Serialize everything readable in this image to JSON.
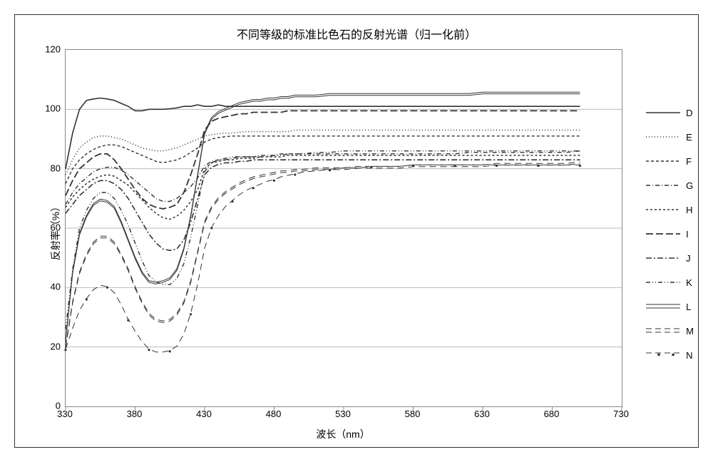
{
  "title": "不同等级的标准比色石的反射光谱（归一化前）",
  "x_label": "波长（nm）",
  "y_label": "反射率（%）",
  "type": "line",
  "background_color": "#ffffff",
  "grid_color": "#bbbbbb",
  "border_color": "#333333",
  "plot_border_color": "#888888",
  "title_fontsize": 16,
  "label_fontsize": 14,
  "tick_fontsize": 13,
  "xlim": [
    330,
    730
  ],
  "ylim": [
    0,
    120
  ],
  "x_ticks": [
    330,
    380,
    430,
    480,
    530,
    580,
    630,
    680,
    730
  ],
  "y_ticks": [
    0,
    20,
    40,
    60,
    80,
    100,
    120
  ],
  "x_value_max_plotted": 700,
  "legend_position": "right",
  "line_width": 1.4,
  "x_points": [
    330,
    335,
    340,
    345,
    350,
    355,
    360,
    365,
    370,
    375,
    380,
    385,
    390,
    395,
    400,
    405,
    410,
    415,
    420,
    425,
    430,
    435,
    440,
    445,
    450,
    455,
    460,
    465,
    470,
    475,
    480,
    485,
    490,
    495,
    500,
    510,
    520,
    530,
    540,
    550,
    560,
    570,
    580,
    590,
    600,
    610,
    620,
    630,
    640,
    650,
    660,
    670,
    680,
    690,
    700
  ],
  "series": [
    {
      "name": "D",
      "label": "D",
      "color": "#333333",
      "dash": "solid",
      "width": 1.6,
      "y": [
        80,
        92,
        100,
        103,
        103.5,
        103.8,
        103.5,
        103,
        102,
        101,
        99.5,
        99.5,
        100,
        100,
        100,
        100.2,
        100.5,
        101,
        101,
        101.5,
        101,
        101,
        101.5,
        101,
        101,
        101,
        101,
        101,
        101,
        101,
        101,
        101,
        101,
        101,
        101,
        101,
        101,
        101,
        101,
        101,
        101,
        101,
        101,
        101,
        101,
        101,
        101,
        101,
        101,
        101,
        101,
        101,
        101,
        101,
        101
      ]
    },
    {
      "name": "E",
      "label": "E",
      "color": "#333333",
      "dash": "1,3",
      "width": 1.6,
      "y": [
        78,
        83,
        87,
        89,
        90.5,
        91,
        91,
        90.5,
        90,
        89,
        88,
        87,
        86.5,
        86,
        86,
        86.5,
        87,
        88,
        89,
        90,
        91,
        91.5,
        91.8,
        92,
        92,
        92.3,
        92.5,
        92.5,
        92.5,
        92.5,
        92.5,
        92.5,
        92.5,
        93,
        93,
        93,
        93,
        93,
        93,
        93,
        93,
        93,
        93,
        93,
        93,
        93,
        93,
        93,
        93,
        93,
        93,
        93,
        93,
        93,
        93
      ]
    },
    {
      "name": "F",
      "label": "F",
      "color": "#333333",
      "dash": "4,3",
      "width": 1.4,
      "y": [
        75,
        80,
        83,
        85,
        86.5,
        87.5,
        88,
        88,
        87.5,
        86.5,
        85.5,
        84.5,
        83.5,
        82.5,
        82,
        82.5,
        83,
        84,
        85.5,
        87,
        89,
        90,
        90.5,
        90.8,
        91,
        91,
        91,
        91,
        91,
        91,
        91,
        91,
        91,
        91,
        91,
        91,
        91,
        91,
        91,
        91,
        91,
        91,
        91,
        91,
        91,
        91,
        91,
        91,
        91,
        91,
        91,
        91,
        91,
        91,
        91
      ]
    },
    {
      "name": "G",
      "label": "G",
      "color": "#333333",
      "dash": "6,3,1,3",
      "width": 1.4,
      "y": [
        68,
        72,
        75,
        77,
        79,
        80,
        80.5,
        80.5,
        79.5,
        78,
        76,
        74,
        72,
        70,
        69,
        69,
        70,
        72,
        74,
        77,
        81,
        82.5,
        83,
        83,
        83.5,
        84,
        84,
        84,
        84.5,
        84.5,
        84.5,
        85,
        85,
        85,
        85,
        85,
        85,
        85,
        85,
        85,
        85,
        85,
        85,
        85,
        85,
        85,
        85.5,
        85.5,
        85.5,
        85.5,
        85.5,
        85.5,
        85.5,
        85.5,
        86
      ]
    },
    {
      "name": "H",
      "label": "H",
      "color": "#333333",
      "dash": "3,3",
      "width": 1.5,
      "y": [
        67,
        70.5,
        73,
        75,
        76.5,
        77.5,
        78,
        77.5,
        76,
        74.5,
        72,
        69.5,
        67,
        65,
        63.5,
        63,
        64,
        66,
        69,
        73,
        80,
        82,
        82.5,
        83,
        83,
        83.5,
        83.5,
        83.5,
        84,
        84,
        84,
        84,
        84.5,
        84.5,
        84.5,
        84.5,
        84.5,
        84.5,
        84.5,
        84.5,
        84.5,
        84.5,
        84.5,
        84.5,
        84.5,
        84.5,
        84.5,
        84.5,
        84.5,
        84.5,
        84.5,
        84.5,
        84.5,
        84.5,
        84.5
      ]
    },
    {
      "name": "I",
      "label": "I",
      "color": "#333333",
      "dash": "10,4",
      "width": 1.8,
      "y": [
        71,
        76,
        80,
        82,
        84,
        85,
        85,
        83,
        80,
        76.5,
        73,
        70,
        68,
        67,
        66.5,
        67,
        68,
        72,
        78,
        85,
        93,
        96,
        97,
        97.5,
        98,
        98.5,
        98.5,
        99,
        99,
        99,
        99,
        99,
        99.5,
        99.5,
        99.5,
        99.5,
        99.5,
        99.5,
        99.5,
        99.5,
        99.5,
        99.5,
        99.5,
        99.5,
        99.5,
        99.5,
        99.5,
        99.5,
        99.5,
        99.5,
        99.5,
        99.5,
        99.5,
        99.5,
        99.5
      ]
    },
    {
      "name": "J",
      "label": "J",
      "color": "#333333",
      "dash": "8,3,2,3",
      "width": 1.6,
      "y": [
        65,
        68,
        71,
        73,
        75,
        76,
        76,
        75,
        73,
        70,
        66,
        62,
        58,
        55,
        53,
        52.5,
        53,
        56,
        62,
        70,
        78,
        80.5,
        81.5,
        82,
        82,
        82.5,
        82.5,
        83,
        83,
        83,
        83,
        83,
        83,
        83,
        83,
        83,
        83,
        83,
        83,
        83,
        83,
        83,
        83,
        83,
        83,
        83,
        83,
        83,
        83,
        83,
        83,
        83,
        83,
        83,
        83
      ]
    },
    {
      "name": "K",
      "label": "K",
      "color": "#333333",
      "dash": "6,3,1,3,1,3",
      "width": 1.4,
      "y": [
        26,
        46,
        60,
        66,
        70,
        72,
        72,
        70,
        66,
        61,
        55,
        49,
        44,
        42,
        41,
        41,
        43,
        48,
        57,
        68,
        79,
        82,
        83,
        83.5,
        84,
        84,
        84,
        84,
        84,
        84,
        84.5,
        84.5,
        85,
        85,
        85,
        85.5,
        85.5,
        86,
        86,
        86,
        86,
        86,
        86,
        86,
        86,
        86,
        86,
        86,
        86,
        86,
        86,
        86,
        86,
        86,
        86
      ]
    },
    {
      "name": "L",
      "label": "L",
      "color": "#333333",
      "dash": "double",
      "width": 1.2,
      "y": [
        22,
        45,
        58,
        64,
        68,
        69.5,
        69,
        67,
        62,
        56,
        50,
        45,
        42,
        41.5,
        42,
        43,
        46,
        53,
        64,
        78,
        92,
        97,
        99,
        100,
        101,
        102,
        102.5,
        103,
        103,
        103.5,
        103.5,
        104,
        104,
        104.5,
        104.5,
        104.5,
        105,
        105,
        105,
        105,
        105,
        105,
        105,
        105,
        105,
        105,
        105,
        105.5,
        105.5,
        105.5,
        105.5,
        105.5,
        105.5,
        105.5,
        105.5
      ]
    },
    {
      "name": "M",
      "label": "M",
      "color": "#333333",
      "dash": "double-dash",
      "width": 1.2,
      "y": [
        20,
        35,
        45,
        51,
        55,
        57,
        57,
        55,
        51,
        46,
        40,
        35,
        31,
        29,
        28.5,
        29,
        31,
        35,
        42,
        52,
        62,
        67,
        70,
        72,
        73.5,
        75,
        76,
        77,
        77.5,
        78,
        78.5,
        79,
        79,
        79.5,
        79.5,
        80,
        80,
        80,
        80.5,
        80.5,
        80.5,
        80.5,
        81,
        81,
        81,
        81,
        81,
        81,
        81.5,
        81.5,
        81.5,
        81.5,
        81.5,
        81.5,
        82
      ]
    },
    {
      "name": "N",
      "label": "N",
      "color": "#333333",
      "dash": "double-dot",
      "width": 1.2,
      "y": [
        19,
        26,
        32,
        36,
        39,
        40.5,
        40,
        38,
        34,
        29,
        25,
        21.5,
        19,
        18,
        18,
        18.5,
        20,
        24,
        31,
        41,
        53,
        60,
        64,
        67,
        69,
        71,
        72.5,
        73.5,
        74.5,
        75.5,
        76,
        77,
        77.5,
        78,
        78.5,
        79,
        79.5,
        80,
        80,
        80.5,
        80.5,
        80.5,
        81,
        81,
        81,
        81,
        81,
        81,
        81,
        81,
        81,
        81,
        81,
        81,
        81
      ]
    }
  ]
}
